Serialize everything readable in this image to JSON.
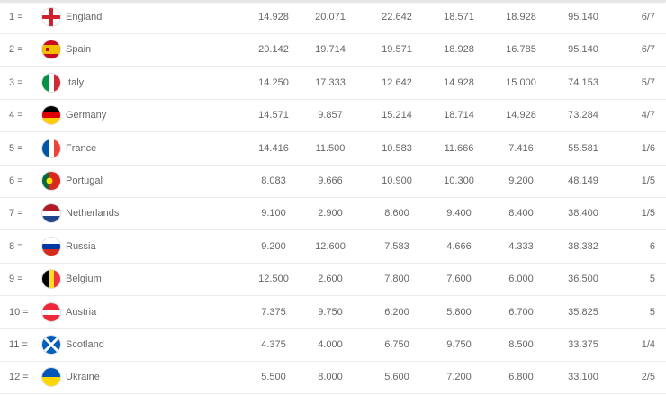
{
  "rows": [
    {
      "rank": "1 =",
      "country": "England",
      "flag": "england-flag",
      "values": [
        "14.928",
        "20.071",
        "22.642",
        "18.571",
        "18.928",
        "95.140"
      ],
      "last": "6/7"
    },
    {
      "rank": "2 =",
      "country": "Spain",
      "flag": "spain-flag",
      "values": [
        "20.142",
        "19.714",
        "19.571",
        "18.928",
        "16.785",
        "95.140"
      ],
      "last": "6/7"
    },
    {
      "rank": "3 =",
      "country": "Italy",
      "flag": "italy-flag",
      "values": [
        "14.250",
        "17.333",
        "12.642",
        "14.928",
        "15.000",
        "74.153"
      ],
      "last": "5/7"
    },
    {
      "rank": "4 =",
      "country": "Germany",
      "flag": "germany-flag",
      "values": [
        "14.571",
        "9.857",
        "15.214",
        "18.714",
        "14.928",
        "73.284"
      ],
      "last": "4/7"
    },
    {
      "rank": "5 =",
      "country": "France",
      "flag": "france-flag",
      "values": [
        "14.416",
        "11.500",
        "10.583",
        "11.666",
        "7.416",
        "55.581"
      ],
      "last": "1/6"
    },
    {
      "rank": "6 =",
      "country": "Portugal",
      "flag": "portugal-flag",
      "values": [
        "8.083",
        "9.666",
        "10.900",
        "10.300",
        "9.200",
        "48.149"
      ],
      "last": "1/5"
    },
    {
      "rank": "7 =",
      "country": "Netherlands",
      "flag": "netherlands-flag",
      "values": [
        "9.100",
        "2.900",
        "8.600",
        "9.400",
        "8.400",
        "38.400"
      ],
      "last": "1/5"
    },
    {
      "rank": "8 =",
      "country": "Russia",
      "flag": "russia-flag",
      "values": [
        "9.200",
        "12.600",
        "7.583",
        "4.666",
        "4.333",
        "38.382"
      ],
      "last": "6"
    },
    {
      "rank": "9 =",
      "country": "Belgium",
      "flag": "belgium-flag",
      "values": [
        "12.500",
        "2.600",
        "7.800",
        "7.600",
        "6.000",
        "36.500"
      ],
      "last": "5"
    },
    {
      "rank": "10 =",
      "country": "Austria",
      "flag": "austria-flag",
      "values": [
        "7.375",
        "9.750",
        "6.200",
        "5.800",
        "6.700",
        "35.825"
      ],
      "last": "5"
    },
    {
      "rank": "11 =",
      "country": "Scotland",
      "flag": "scotland-flag",
      "values": [
        "4.375",
        "4.000",
        "6.750",
        "9.750",
        "8.500",
        "33.375"
      ],
      "last": "1/4"
    },
    {
      "rank": "12 =",
      "country": "Ukraine",
      "flag": "ukraine-flag",
      "values": [
        "5.500",
        "8.000",
        "5.600",
        "7.200",
        "6.800",
        "33.100"
      ],
      "last": "2/5"
    }
  ]
}
